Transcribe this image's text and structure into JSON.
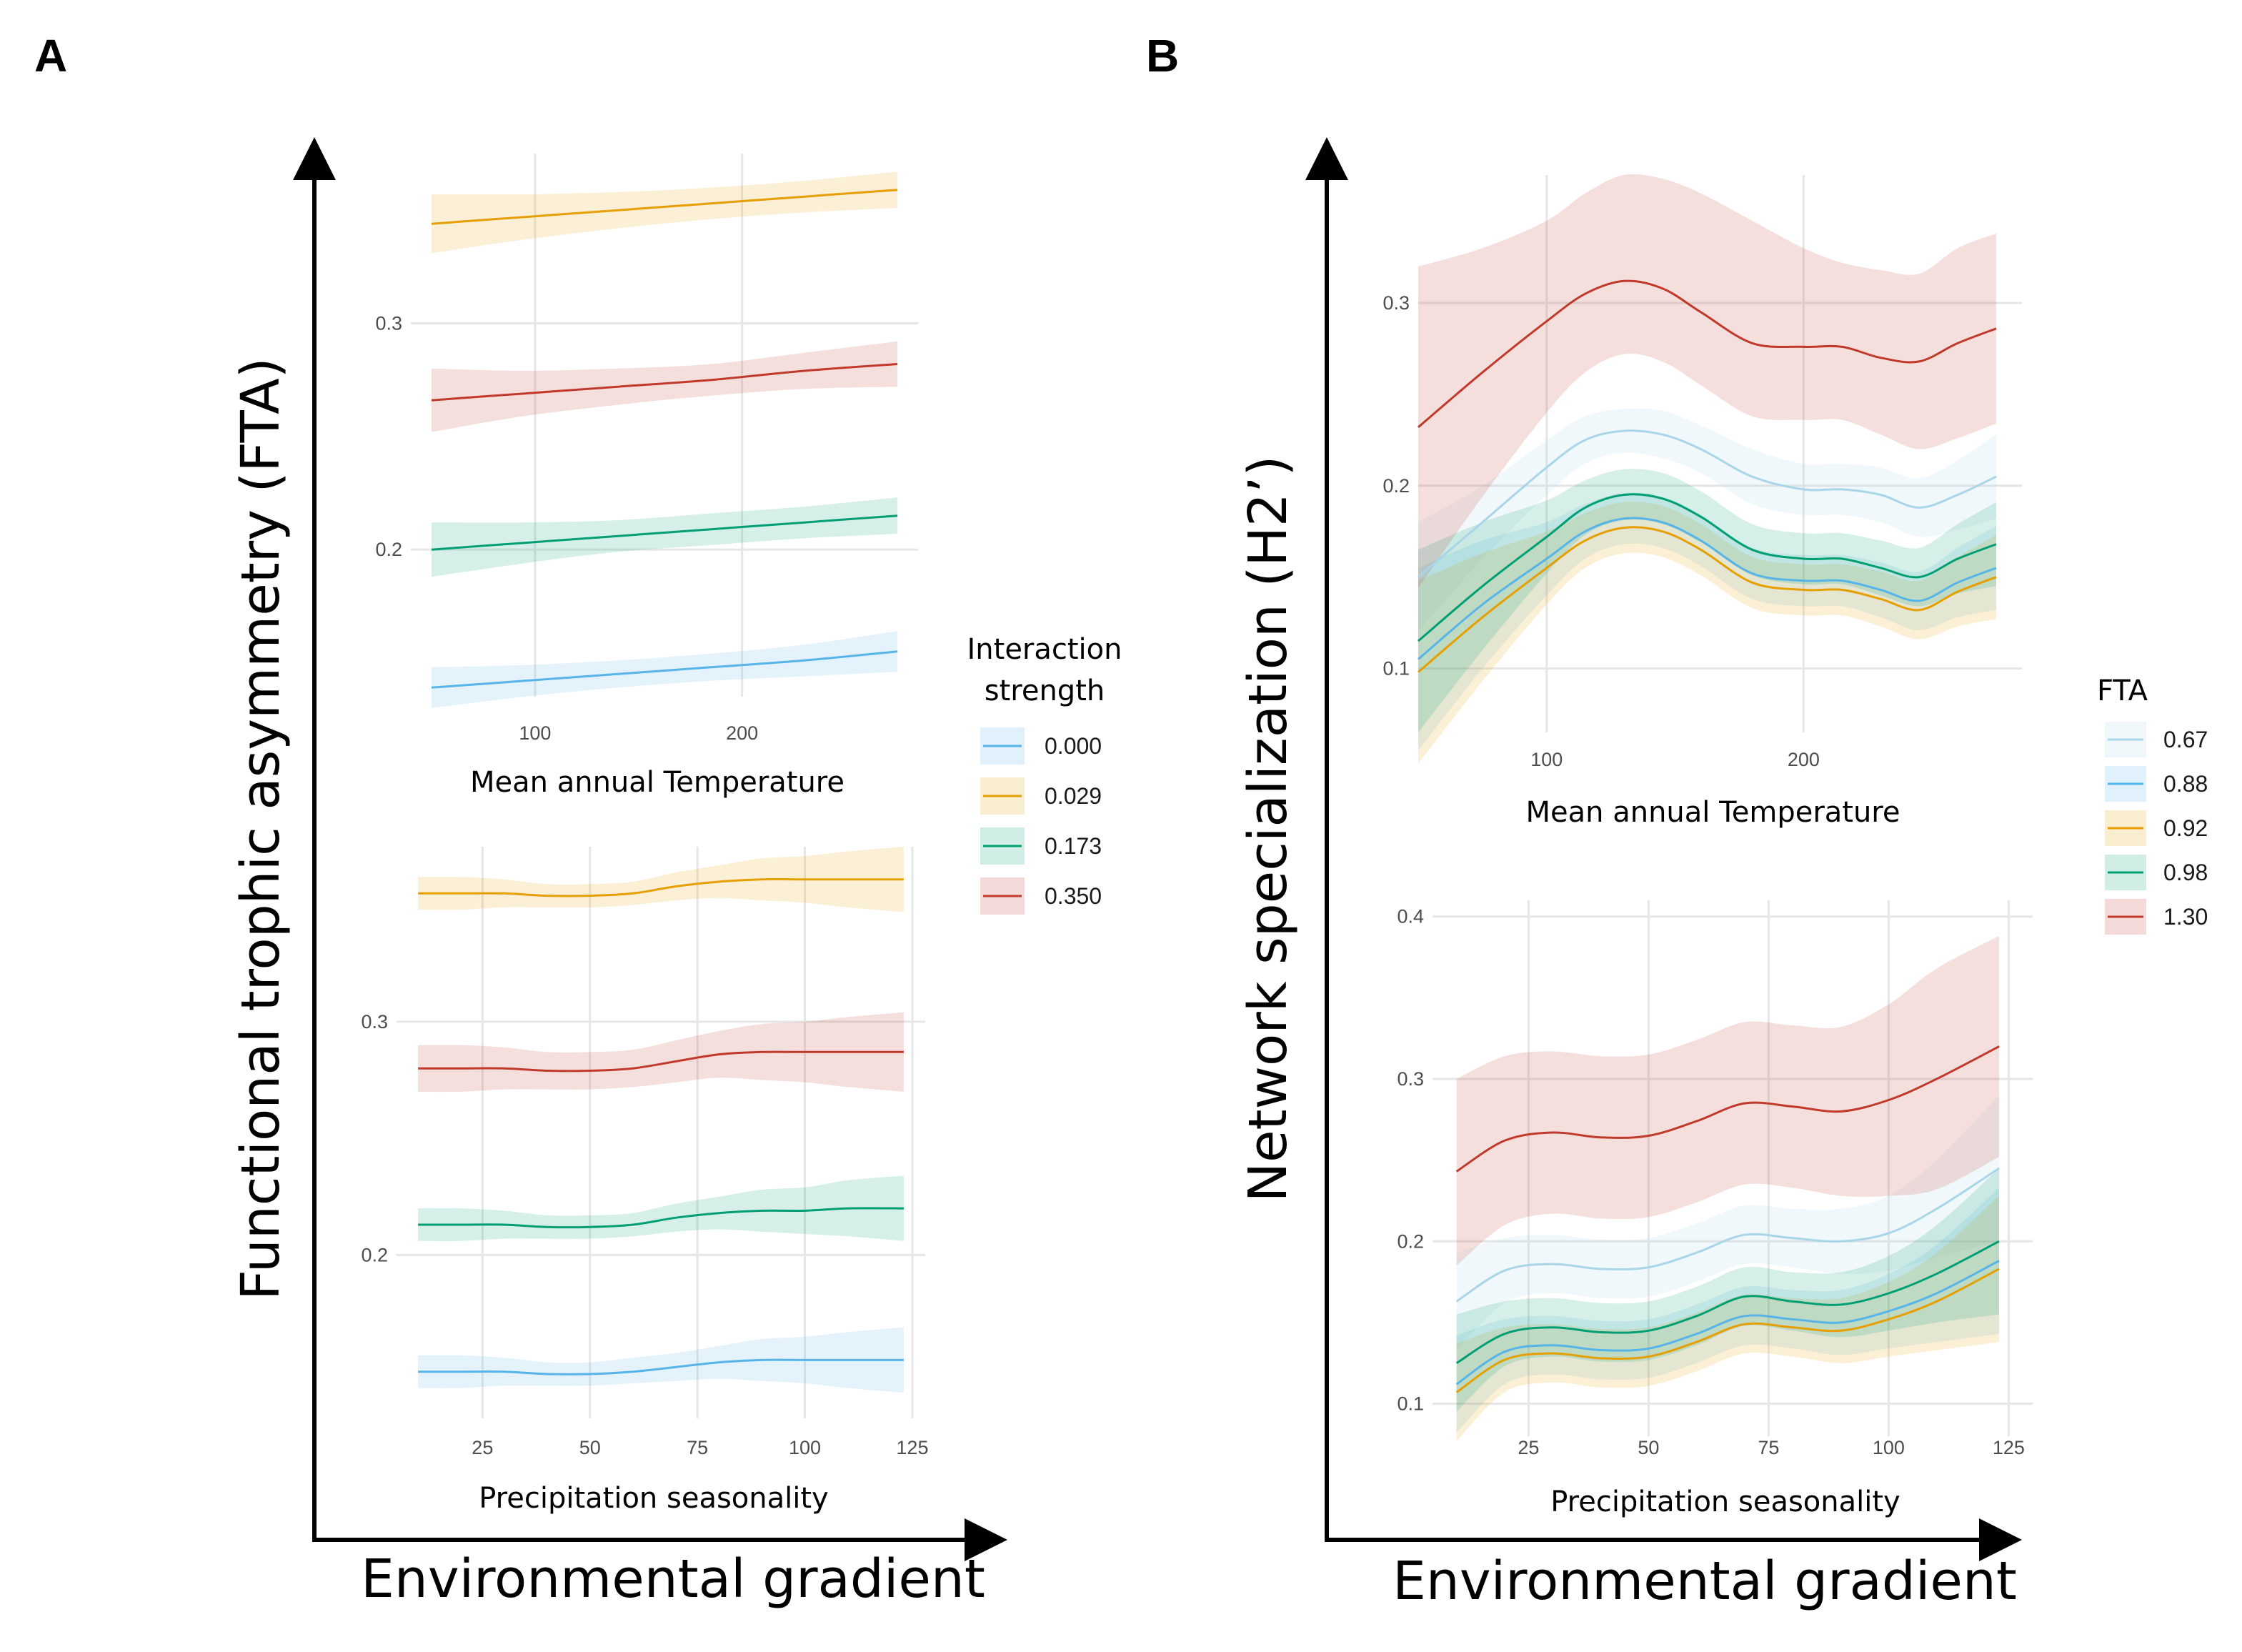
{
  "panels": [
    {
      "letter": "A",
      "y_concept": "Functional trophic asymmetry (FTA)",
      "x_concept": "Environmental gradient"
    },
    {
      "letter": "B",
      "y_concept": "Network specialization (H2’)",
      "x_concept": "Environmental gradient"
    }
  ],
  "legends": [
    {
      "title_lines": [
        "Interaction",
        "strength"
      ],
      "entries": [
        {
          "label": "0.000",
          "color": "#56B4E9"
        },
        {
          "label": "0.029",
          "color": "#E69F00"
        },
        {
          "label": "0.173",
          "color": "#009E73"
        },
        {
          "label": "0.350",
          "color": "#C0392B"
        }
      ]
    },
    {
      "title_lines": [
        "FTA"
      ],
      "entries": [
        {
          "label": "0.67",
          "color": "#A8D5E8"
        },
        {
          "label": "0.88",
          "color": "#56B4E9"
        },
        {
          "label": "0.92",
          "color": "#E69F00"
        },
        {
          "label": "0.98",
          "color": "#009E73"
        },
        {
          "label": "1.30",
          "color": "#C0392B"
        }
      ]
    }
  ],
  "chart_data": [
    {
      "id": "A-temp",
      "type": "line",
      "xlabel": "Mean annual Temperature",
      "xlim": [
        40,
        285
      ],
      "ylim": [
        0.135,
        0.375
      ],
      "xticks": [
        100,
        200
      ],
      "yticks": [
        0.2,
        0.3
      ],
      "x": [
        50,
        95,
        140,
        185,
        230,
        275
      ],
      "series": [
        {
          "name": "0.000",
          "color": "#56B4E9",
          "values": [
            0.139,
            0.142,
            0.145,
            0.148,
            0.151,
            0.155
          ],
          "lower": [
            0.13,
            0.135,
            0.139,
            0.142,
            0.144,
            0.146
          ],
          "upper": [
            0.148,
            0.149,
            0.151,
            0.154,
            0.158,
            0.164
          ]
        },
        {
          "name": "0.029",
          "color": "#E69F00",
          "values": [
            0.344,
            0.347,
            0.35,
            0.353,
            0.356,
            0.359
          ],
          "lower": [
            0.331,
            0.337,
            0.342,
            0.346,
            0.349,
            0.351
          ],
          "upper": [
            0.357,
            0.357,
            0.358,
            0.36,
            0.363,
            0.367
          ]
        },
        {
          "name": "0.173",
          "color": "#009E73",
          "values": [
            0.2,
            0.203,
            0.206,
            0.209,
            0.212,
            0.215
          ],
          "lower": [
            0.188,
            0.194,
            0.199,
            0.202,
            0.205,
            0.207
          ],
          "upper": [
            0.212,
            0.212,
            0.213,
            0.216,
            0.219,
            0.223
          ]
        },
        {
          "name": "0.350",
          "color": "#C0392B",
          "values": [
            0.266,
            0.269,
            0.272,
            0.275,
            0.279,
            0.282
          ],
          "lower": [
            0.252,
            0.259,
            0.264,
            0.268,
            0.271,
            0.272
          ],
          "upper": [
            0.28,
            0.279,
            0.28,
            0.282,
            0.287,
            0.292
          ]
        }
      ]
    },
    {
      "id": "A-precip",
      "type": "line",
      "xlabel": "Precipitation seasonality",
      "xlim": [
        5,
        128
      ],
      "ylim": [
        0.13,
        0.375
      ],
      "xticks": [
        25,
        50,
        75,
        100,
        125
      ],
      "yticks": [
        0.2,
        0.3
      ],
      "x": [
        10,
        20,
        30,
        40,
        50,
        60,
        70,
        80,
        90,
        100,
        110,
        123
      ],
      "series": [
        {
          "name": "0.000",
          "color": "#56B4E9",
          "values": [
            0.15,
            0.15,
            0.15,
            0.149,
            0.149,
            0.15,
            0.152,
            0.154,
            0.155,
            0.155,
            0.155,
            0.155
          ],
          "lower": [
            0.143,
            0.143,
            0.144,
            0.144,
            0.144,
            0.145,
            0.146,
            0.147,
            0.146,
            0.145,
            0.143,
            0.141
          ],
          "upper": [
            0.157,
            0.157,
            0.156,
            0.154,
            0.154,
            0.156,
            0.158,
            0.161,
            0.164,
            0.165,
            0.167,
            0.169
          ]
        },
        {
          "name": "0.029",
          "color": "#E69F00",
          "values": [
            0.355,
            0.355,
            0.355,
            0.354,
            0.354,
            0.355,
            0.358,
            0.36,
            0.361,
            0.361,
            0.361,
            0.361
          ],
          "lower": [
            0.348,
            0.348,
            0.349,
            0.349,
            0.349,
            0.35,
            0.352,
            0.353,
            0.352,
            0.351,
            0.349,
            0.347
          ],
          "upper": [
            0.362,
            0.362,
            0.361,
            0.359,
            0.359,
            0.36,
            0.364,
            0.367,
            0.37,
            0.371,
            0.373,
            0.375
          ]
        },
        {
          "name": "0.173",
          "color": "#009E73",
          "values": [
            0.213,
            0.213,
            0.213,
            0.212,
            0.212,
            0.213,
            0.216,
            0.218,
            0.219,
            0.219,
            0.22,
            0.22
          ],
          "lower": [
            0.206,
            0.206,
            0.207,
            0.207,
            0.207,
            0.208,
            0.21,
            0.211,
            0.21,
            0.209,
            0.208,
            0.206
          ],
          "upper": [
            0.22,
            0.22,
            0.219,
            0.217,
            0.217,
            0.218,
            0.222,
            0.225,
            0.228,
            0.229,
            0.232,
            0.234
          ]
        },
        {
          "name": "0.350",
          "color": "#C0392B",
          "values": [
            0.28,
            0.28,
            0.28,
            0.279,
            0.279,
            0.28,
            0.283,
            0.286,
            0.287,
            0.287,
            0.287,
            0.287
          ],
          "lower": [
            0.27,
            0.27,
            0.271,
            0.271,
            0.271,
            0.272,
            0.274,
            0.276,
            0.275,
            0.274,
            0.272,
            0.27
          ],
          "upper": [
            0.29,
            0.29,
            0.289,
            0.287,
            0.287,
            0.288,
            0.292,
            0.296,
            0.299,
            0.3,
            0.302,
            0.304
          ]
        }
      ]
    },
    {
      "id": "B-temp",
      "type": "line",
      "xlabel": "Mean annual Temperature",
      "xlim": [
        50,
        285
      ],
      "ylim": [
        0.065,
        0.37
      ],
      "xticks": [
        100,
        200
      ],
      "yticks": [
        0.1,
        0.2,
        0.3
      ],
      "x": [
        50,
        75,
        100,
        115,
        130,
        145,
        160,
        180,
        200,
        215,
        230,
        245,
        260,
        275
      ],
      "series": [
        {
          "name": "0.67",
          "color": "#A8D5E8",
          "values": [
            0.15,
            0.18,
            0.21,
            0.225,
            0.23,
            0.228,
            0.22,
            0.205,
            0.198,
            0.198,
            0.195,
            0.188,
            0.195,
            0.205
          ],
          "lower": [
            0.12,
            0.16,
            0.195,
            0.212,
            0.218,
            0.215,
            0.207,
            0.19,
            0.184,
            0.184,
            0.18,
            0.172,
            0.176,
            0.182
          ],
          "upper": [
            0.18,
            0.2,
            0.225,
            0.238,
            0.242,
            0.241,
            0.233,
            0.22,
            0.212,
            0.212,
            0.21,
            0.204,
            0.214,
            0.228
          ]
        },
        {
          "name": "0.88",
          "color": "#56B4E9",
          "values": [
            0.105,
            0.135,
            0.16,
            0.175,
            0.182,
            0.18,
            0.17,
            0.152,
            0.148,
            0.148,
            0.143,
            0.137,
            0.147,
            0.155
          ],
          "lower": [
            0.055,
            0.1,
            0.14,
            0.16,
            0.168,
            0.166,
            0.156,
            0.138,
            0.134,
            0.134,
            0.128,
            0.121,
            0.128,
            0.132
          ],
          "upper": [
            0.155,
            0.17,
            0.18,
            0.19,
            0.196,
            0.194,
            0.184,
            0.166,
            0.162,
            0.162,
            0.158,
            0.153,
            0.166,
            0.178
          ]
        },
        {
          "name": "0.92",
          "color": "#E69F00",
          "values": [
            0.098,
            0.128,
            0.155,
            0.17,
            0.177,
            0.175,
            0.165,
            0.147,
            0.143,
            0.143,
            0.138,
            0.132,
            0.142,
            0.15
          ],
          "lower": [
            0.048,
            0.093,
            0.135,
            0.155,
            0.163,
            0.161,
            0.151,
            0.133,
            0.129,
            0.129,
            0.123,
            0.116,
            0.123,
            0.127
          ],
          "upper": [
            0.148,
            0.163,
            0.175,
            0.185,
            0.191,
            0.189,
            0.179,
            0.161,
            0.157,
            0.157,
            0.153,
            0.148,
            0.161,
            0.173
          ]
        },
        {
          "name": "0.98",
          "color": "#009E73",
          "values": [
            0.115,
            0.145,
            0.172,
            0.188,
            0.195,
            0.193,
            0.183,
            0.165,
            0.16,
            0.16,
            0.155,
            0.15,
            0.16,
            0.168
          ],
          "lower": [
            0.065,
            0.11,
            0.152,
            0.173,
            0.181,
            0.179,
            0.169,
            0.151,
            0.146,
            0.146,
            0.14,
            0.134,
            0.141,
            0.145
          ],
          "upper": [
            0.165,
            0.18,
            0.192,
            0.203,
            0.209,
            0.207,
            0.197,
            0.179,
            0.174,
            0.174,
            0.17,
            0.166,
            0.179,
            0.191
          ]
        },
        {
          "name": "1.30",
          "color": "#C0392B",
          "values": [
            0.232,
            0.262,
            0.29,
            0.305,
            0.312,
            0.308,
            0.295,
            0.278,
            0.276,
            0.276,
            0.27,
            0.268,
            0.278,
            0.286
          ],
          "lower": [
            0.144,
            0.194,
            0.24,
            0.262,
            0.272,
            0.268,
            0.255,
            0.238,
            0.236,
            0.236,
            0.228,
            0.22,
            0.226,
            0.234
          ],
          "upper": [
            0.32,
            0.33,
            0.345,
            0.36,
            0.37,
            0.368,
            0.36,
            0.345,
            0.33,
            0.322,
            0.318,
            0.316,
            0.33,
            0.338
          ]
        }
      ]
    },
    {
      "id": "B-precip",
      "type": "line",
      "xlabel": "Precipitation seasonality",
      "xlim": [
        5,
        130
      ],
      "ylim": [
        0.08,
        0.41
      ],
      "xticks": [
        25,
        50,
        75,
        100,
        125
      ],
      "yticks": [
        0.1,
        0.2,
        0.3,
        0.4
      ],
      "x": [
        10,
        20,
        30,
        40,
        50,
        60,
        70,
        80,
        90,
        100,
        110,
        123
      ],
      "series": [
        {
          "name": "0.67",
          "color": "#A8D5E8",
          "values": [
            0.163,
            0.182,
            0.186,
            0.183,
            0.184,
            0.193,
            0.204,
            0.202,
            0.2,
            0.205,
            0.22,
            0.245
          ],
          "lower": [
            0.133,
            0.162,
            0.168,
            0.165,
            0.166,
            0.175,
            0.186,
            0.184,
            0.18,
            0.182,
            0.19,
            0.2
          ],
          "upper": [
            0.193,
            0.202,
            0.204,
            0.201,
            0.202,
            0.211,
            0.222,
            0.22,
            0.22,
            0.228,
            0.25,
            0.29
          ]
        },
        {
          "name": "0.88",
          "color": "#56B4E9",
          "values": [
            0.112,
            0.132,
            0.136,
            0.133,
            0.134,
            0.143,
            0.154,
            0.152,
            0.15,
            0.157,
            0.168,
            0.188
          ],
          "lower": [
            0.082,
            0.112,
            0.118,
            0.115,
            0.116,
            0.125,
            0.136,
            0.134,
            0.13,
            0.134,
            0.138,
            0.143
          ],
          "upper": [
            0.142,
            0.152,
            0.154,
            0.151,
            0.152,
            0.161,
            0.172,
            0.17,
            0.17,
            0.18,
            0.198,
            0.233
          ]
        },
        {
          "name": "0.92",
          "color": "#E69F00",
          "values": [
            0.107,
            0.127,
            0.131,
            0.128,
            0.129,
            0.138,
            0.149,
            0.147,
            0.145,
            0.152,
            0.163,
            0.183
          ],
          "lower": [
            0.077,
            0.107,
            0.113,
            0.11,
            0.111,
            0.12,
            0.131,
            0.129,
            0.125,
            0.129,
            0.133,
            0.138
          ],
          "upper": [
            0.137,
            0.147,
            0.149,
            0.146,
            0.147,
            0.156,
            0.167,
            0.165,
            0.165,
            0.175,
            0.193,
            0.228
          ]
        },
        {
          "name": "0.98",
          "color": "#009E73",
          "values": [
            0.125,
            0.143,
            0.147,
            0.144,
            0.145,
            0.154,
            0.166,
            0.163,
            0.161,
            0.168,
            0.18,
            0.2
          ],
          "lower": [
            0.095,
            0.123,
            0.129,
            0.126,
            0.127,
            0.136,
            0.148,
            0.145,
            0.141,
            0.145,
            0.15,
            0.155
          ],
          "upper": [
            0.155,
            0.163,
            0.165,
            0.162,
            0.163,
            0.172,
            0.184,
            0.181,
            0.181,
            0.191,
            0.21,
            0.245
          ]
        },
        {
          "name": "1.30",
          "color": "#C0392B",
          "values": [
            0.243,
            0.262,
            0.267,
            0.264,
            0.265,
            0.274,
            0.285,
            0.283,
            0.28,
            0.287,
            0.3,
            0.32
          ],
          "lower": [
            0.185,
            0.21,
            0.217,
            0.214,
            0.215,
            0.224,
            0.235,
            0.233,
            0.228,
            0.228,
            0.232,
            0.252
          ],
          "upper": [
            0.3,
            0.314,
            0.317,
            0.314,
            0.315,
            0.324,
            0.335,
            0.333,
            0.332,
            0.346,
            0.368,
            0.388
          ]
        }
      ]
    }
  ]
}
